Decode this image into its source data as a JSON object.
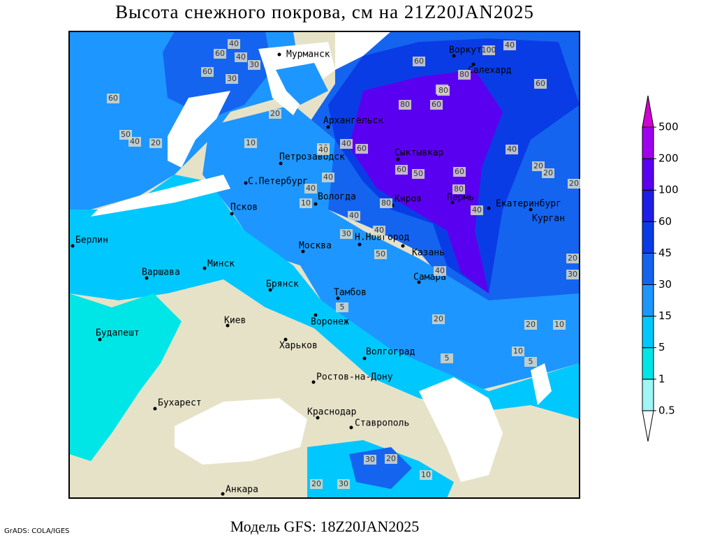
{
  "title": "Высота снежного покрова, см на 21Z20JAN2025",
  "subtitle": "Модель GFS: 18Z20JAN2025",
  "credit": "GrADS: COLA/IGES",
  "legend": {
    "levels": [
      0.5,
      1,
      5,
      15,
      30,
      45,
      60,
      100,
      200,
      500
    ],
    "colors": [
      "#ffffff",
      "#a0f5f5",
      "#00e6e6",
      "#00c8ff",
      "#1e96ff",
      "#1464f0",
      "#0a3ce6",
      "#1e1ee6",
      "#5a00f0",
      "#a000f0",
      "#d200d2"
    ]
  },
  "cities": [
    "Мурманск",
    "Архангельск",
    "Воркута",
    "Салехард",
    "Сыктывкар",
    "Петрозаводск",
    "С.Петербург",
    "Вологда",
    "Киров",
    "Пермь",
    "Екатеринбург",
    "Курган",
    "Псков",
    "Москва",
    "Н.Новгород",
    "Казань",
    "Берлин",
    "Варшава",
    "Минск",
    "Брянск",
    "Тамбов",
    "Самара",
    "Киев",
    "Воронеж",
    "Будапешт",
    "Харьков",
    "Волгоград",
    "Ростов-на-Дону",
    "Бухарест",
    "Краснодар",
    "Ставрополь",
    "Анкара"
  ],
  "contour_labels": [
    40,
    40,
    30,
    60,
    30,
    60,
    80,
    100,
    80,
    60,
    80,
    60,
    40,
    20,
    20,
    60,
    40,
    50,
    10,
    30,
    40,
    60,
    40,
    80,
    60,
    60,
    50,
    80,
    40,
    40,
    20,
    40,
    10,
    40,
    20,
    40,
    30,
    50,
    80,
    20,
    40,
    5,
    20,
    10,
    20,
    5,
    5,
    10,
    30,
    20,
    20,
    30,
    20,
    10,
    40,
    30,
    60
  ]
}
